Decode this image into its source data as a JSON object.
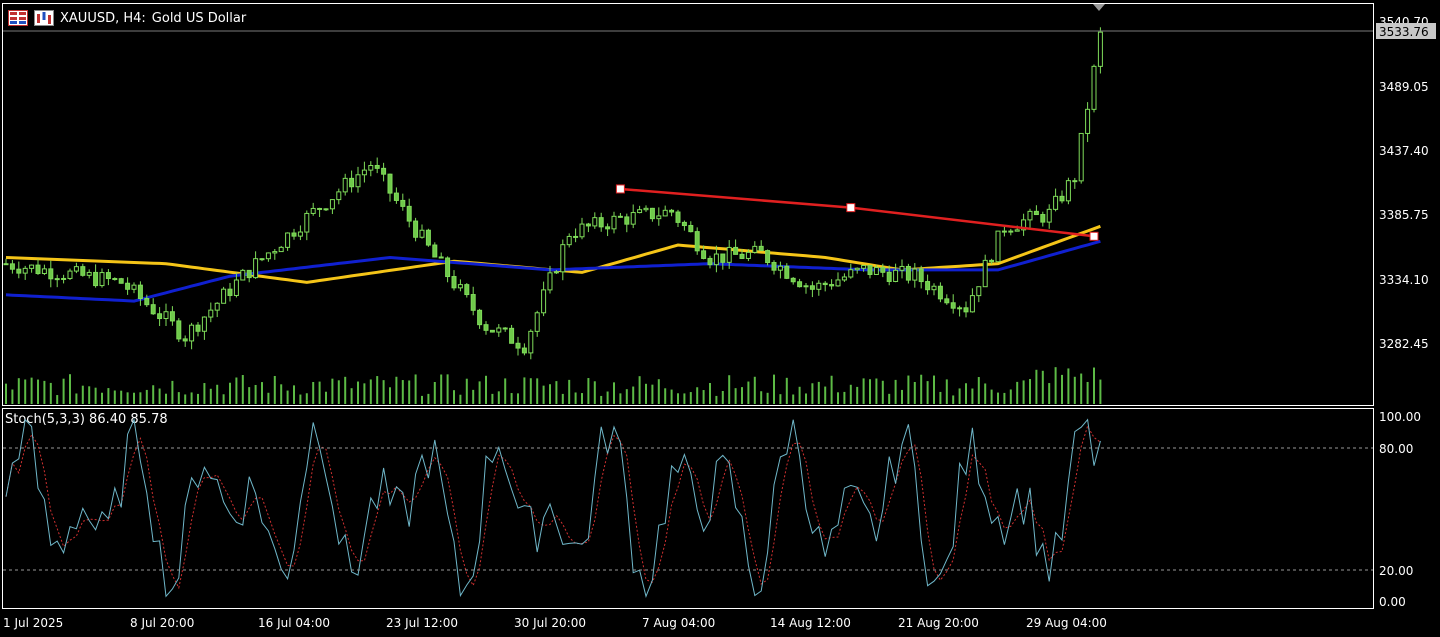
{
  "header": {
    "symbol": "XAUUSD, H4:",
    "description": "Gold US Dollar",
    "icons": [
      "chart-grid-icon",
      "candles-icon"
    ]
  },
  "main_panel": {
    "price_labels": [
      "3540.70",
      "3489.05",
      "3437.40",
      "3385.75",
      "3334.10",
      "3282.45"
    ],
    "current_price": "3533.76",
    "price_range": [
      3243,
      3556
    ]
  },
  "indicator_panel": {
    "label": "Stoch(5,3,3) 86.40 85.78",
    "levels": [
      "100.00",
      "80.00",
      "20.00",
      "0.00"
    ]
  },
  "time_axis": {
    "labels": [
      "1 Jul 2025",
      "8 Jul 20:00",
      "16 Jul 04:00",
      "23 Jul 12:00",
      "30 Jul 20:00",
      "7 Aug 04:00",
      "14 Aug 12:00",
      "21 Aug 20:00",
      "29 Aug 04:00"
    ]
  },
  "chart_data": {
    "type": "candlestick",
    "title": "XAUUSD, H4: Gold US Dollar",
    "x_range": [
      "1 Jul 2025",
      "29 Aug 2025"
    ],
    "close_path_anchors": [
      [
        0,
        3350
      ],
      [
        18,
        3335
      ],
      [
        28,
        3292
      ],
      [
        37,
        3340
      ],
      [
        47,
        3387
      ],
      [
        57,
        3430
      ],
      [
        67,
        3355
      ],
      [
        75,
        3300
      ],
      [
        81,
        3285
      ],
      [
        88,
        3375
      ],
      [
        96,
        3386
      ],
      [
        104,
        3392
      ],
      [
        110,
        3355
      ],
      [
        118,
        3358
      ],
      [
        126,
        3330
      ],
      [
        134,
        3345
      ],
      [
        142,
        3340
      ],
      [
        150,
        3315
      ],
      [
        156,
        3380
      ],
      [
        163,
        3390
      ],
      [
        167,
        3420
      ],
      [
        171,
        3533
      ]
    ],
    "trendline": {
      "color": "#e02020",
      "points": [
        [
          96,
          3410
        ],
        [
          132,
          3395
        ],
        [
          170,
          3372
        ]
      ]
    },
    "moving_averages": [
      {
        "color": "#f5c518",
        "anchors": [
          [
            0,
            3355
          ],
          [
            25,
            3350
          ],
          [
            47,
            3335
          ],
          [
            70,
            3352
          ],
          [
            90,
            3343
          ],
          [
            105,
            3365
          ],
          [
            128,
            3355
          ],
          [
            140,
            3345
          ],
          [
            155,
            3350
          ],
          [
            171,
            3380
          ]
        ]
      },
      {
        "color": "#1020d0",
        "anchors": [
          [
            0,
            3325
          ],
          [
            20,
            3320
          ],
          [
            35,
            3340
          ],
          [
            60,
            3355
          ],
          [
            85,
            3345
          ],
          [
            110,
            3350
          ],
          [
            135,
            3345
          ],
          [
            155,
            3345
          ],
          [
            171,
            3368
          ]
        ]
      }
    ],
    "stochastic": {
      "k": 86.4,
      "d": 85.78,
      "overbought": 80,
      "oversold": 20
    }
  },
  "colors": {
    "bull": "#7fdc5a",
    "bear": "#6fc94a",
    "volume": "#5dbb46",
    "stoch_main": "#6fb7c9",
    "stoch_signal": "#d03030",
    "grid": "#888888"
  }
}
